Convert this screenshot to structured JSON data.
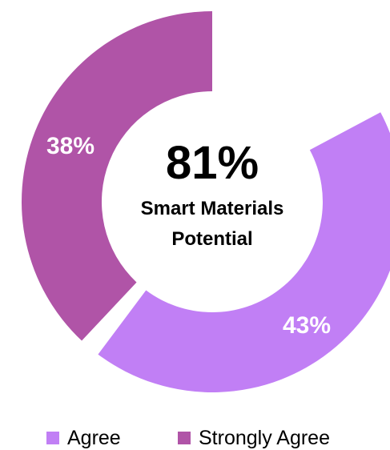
{
  "chart_data": {
    "type": "pie",
    "center_value": "81%",
    "center_label_line1": "Smart Materials",
    "center_label_line2": "Potential",
    "categories": [
      "Strongly Agree",
      "Agree"
    ],
    "values": [
      38,
      43
    ],
    "value_labels": [
      "38%",
      "43%"
    ],
    "colors": [
      "#b054a7",
      "#c17ff5"
    ],
    "legend": {
      "position": "bottom",
      "items": [
        {
          "label": "Agree",
          "color": "#c17ff5"
        },
        {
          "label": "Strongly Agree",
          "color": "#b054a7"
        }
      ]
    }
  }
}
